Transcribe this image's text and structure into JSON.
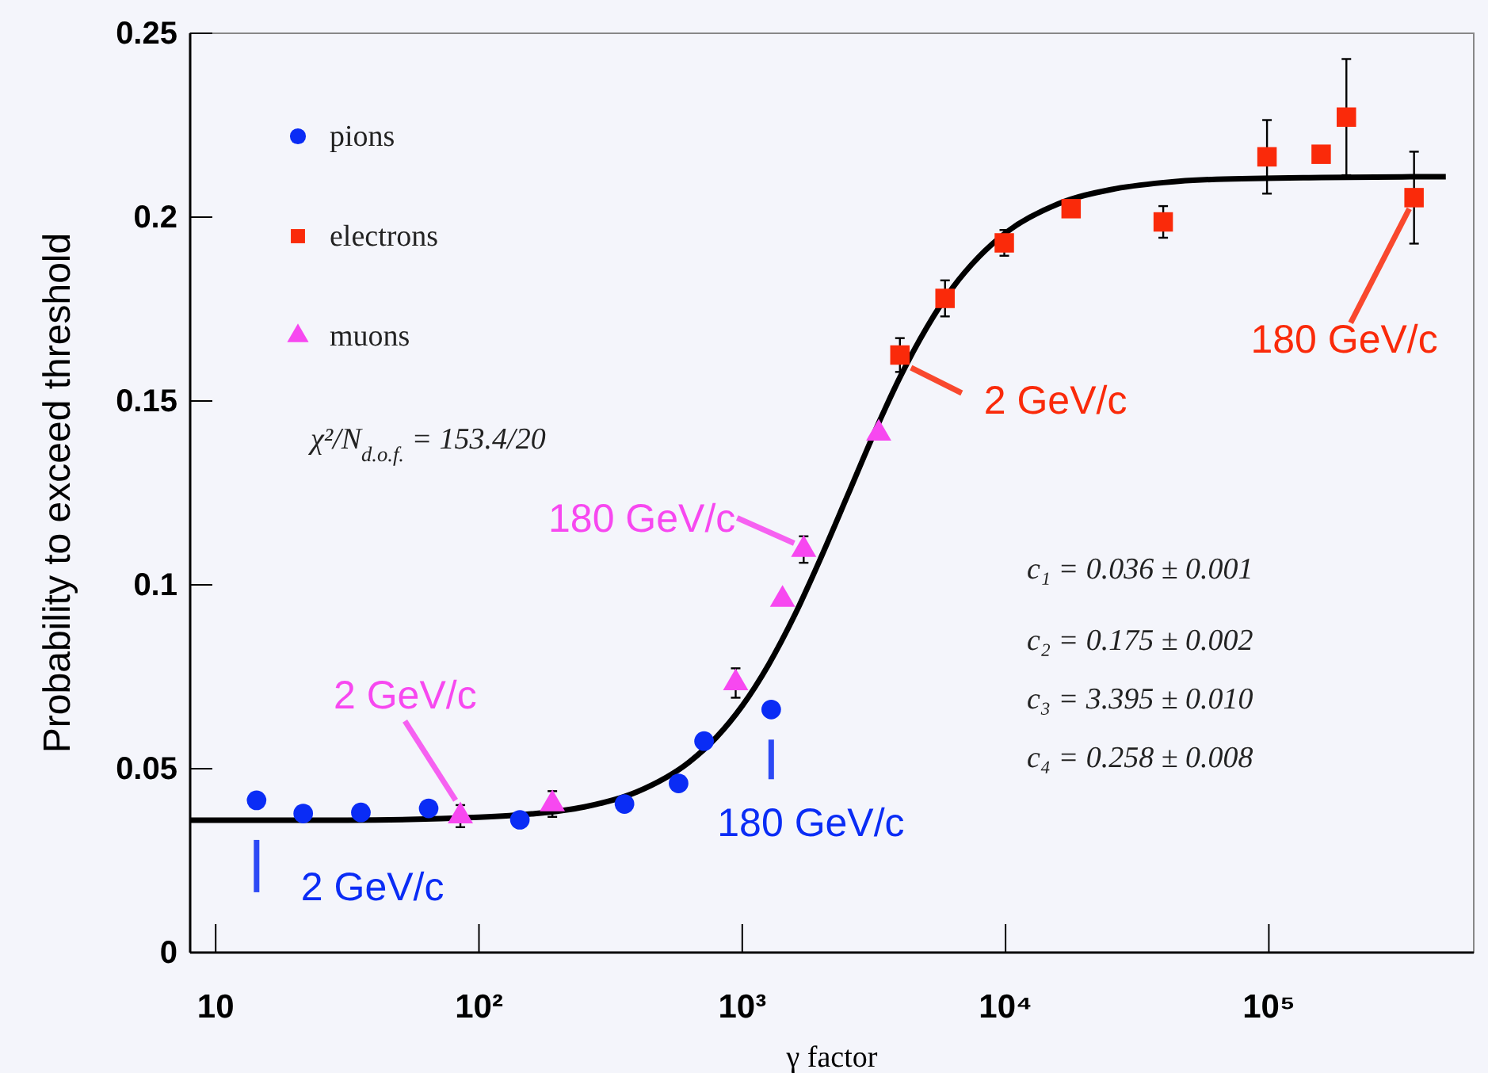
{
  "chart_data": {
    "type": "scatter",
    "xlabel": "γ factor",
    "ylabel": "Probability to exceed threshold",
    "log": "x",
    "xlim": [
      8,
      600000
    ],
    "ylim": [
      0,
      0.25
    ],
    "xticks": [
      {
        "value": 10,
        "label": "10"
      },
      {
        "value": 100,
        "label": "10²"
      },
      {
        "value": 1000,
        "label": "10³"
      },
      {
        "value": 10000,
        "label": "10⁴"
      },
      {
        "value": 100000,
        "label": "10⁵"
      }
    ],
    "yticks": [
      0,
      0.05,
      0.1,
      0.15,
      0.2,
      0.25
    ],
    "grid": false,
    "legend": "top left",
    "series": [
      {
        "name": "pions",
        "color": "#0a2cf5",
        "marker": "circle",
        "x": [
          14.3,
          21.5,
          35.6,
          64.4,
          143,
          357,
          573,
          716,
          1288
        ],
        "values": [
          0.0414,
          0.0378,
          0.0381,
          0.0392,
          0.0361,
          0.0404,
          0.046,
          0.0575,
          0.0661
        ]
      },
      {
        "name": "electrons",
        "color": "#fa2a0a",
        "marker": "square",
        "x": [
          3970,
          5890,
          9890,
          17740,
          39700,
          98400,
          158000,
          197000,
          356000
        ],
        "values": [
          0.1625,
          0.1779,
          0.193,
          0.2023,
          0.1987,
          0.2164,
          0.2171,
          0.2272,
          0.2053
        ],
        "errors": [
          0.0046,
          0.0049,
          0.0035,
          0.002,
          0.0043,
          0.01,
          null,
          0.0158,
          0.0125
        ]
      },
      {
        "name": "muons",
        "color": "#f748f0",
        "marker": "triangle",
        "x": [
          85,
          190,
          944,
          1422,
          1711,
          3297
        ],
        "values": [
          0.0371,
          0.0404,
          0.0733,
          0.096,
          0.1096,
          0.1412
        ],
        "errors": [
          0.003,
          0.0035,
          0.004,
          null,
          0.0036,
          null
        ]
      },
      {
        "type": "line",
        "color": "#000000",
        "marker": "none",
        "line_style": "solid",
        "x": [
          8,
          31.6,
          100,
          158.5,
          251.2,
          398.1,
          631,
          794.3,
          1000,
          1259,
          1585,
          1995,
          2512,
          3162,
          3981,
          5012,
          6310,
          7943,
          10000,
          15849,
          25119,
          39811,
          63096,
          158489,
          470000
        ],
        "values": [
          0.036,
          0.036,
          0.0368,
          0.0377,
          0.0396,
          0.0437,
          0.0519,
          0.0584,
          0.0671,
          0.0783,
          0.0919,
          0.1076,
          0.1243,
          0.1411,
          0.1566,
          0.1699,
          0.1809,
          0.1893,
          0.1957,
          0.2036,
          0.2075,
          0.2094,
          0.2103,
          0.2108,
          0.211
        ]
      }
    ],
    "annotations": [
      {
        "text": "2 GeV/c",
        "x": 14.3,
        "y": 0.0414
      },
      {
        "text": "180 GeV/c",
        "x": 1288,
        "y": 0.0661
      },
      {
        "text": "2 GeV/c",
        "x": 85,
        "y": 0.0371
      },
      {
        "text": "180 GeV/c",
        "x": 1711,
        "y": 0.1096
      },
      {
        "text": "2 GeV/c",
        "x": 3970,
        "y": 0.1625
      },
      {
        "text": "180 GeV/c",
        "x": 356000,
        "y": 0.2053
      },
      "χ²/N$_{d.o.f.}$ = 153.4/20",
      "c₁ = 0.036 ± 0.001",
      "c₂ = 0.175 ± 0.002",
      "c₃ = 3.395 ± 0.010",
      "c₄ = 0.258 ± 0.008"
    ]
  }
}
